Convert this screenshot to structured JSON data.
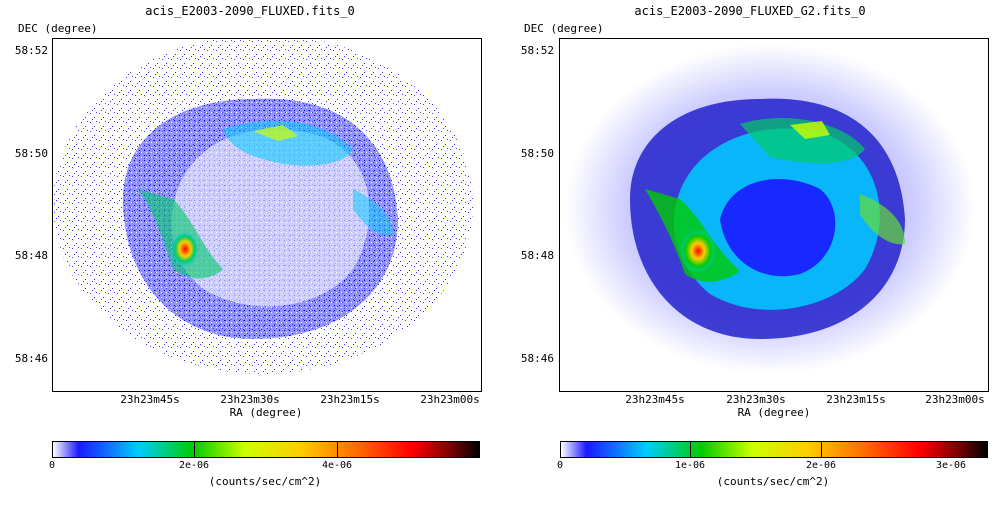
{
  "left": {
    "title": "acis_E2003-2090_FLUXED.fits_0",
    "yaxis_label": "DEC (degree)",
    "xaxis_label": "RA (degree)",
    "yticks": [
      "58:52",
      "58:50",
      "58:48",
      "58:46"
    ],
    "xticks": [
      "23h23m45s",
      "23h23m30s",
      "23h23m15s",
      "23h23m00s"
    ],
    "colorbar_ticks": [
      "0",
      "2e-06",
      "4e-06"
    ],
    "colorbar_units": "(counts/sec/cm^2)"
  },
  "right": {
    "title": "acis_E2003-2090_FLUXED_G2.fits_0",
    "yaxis_label": "DEC (degree)",
    "xaxis_label": "RA (degree)",
    "yticks": [
      "58:52",
      "58:50",
      "58:48",
      "58:46"
    ],
    "xticks": [
      "23h23m45s",
      "23h23m30s",
      "23h23m15s",
      "23h23m00s"
    ],
    "colorbar_ticks": [
      "0",
      "1e-06",
      "2e-06",
      "3e-06"
    ],
    "colorbar_units": "(counts/sec/cm^2)"
  },
  "colormap": [
    "#ffffff",
    "#1a1aff",
    "#00ccff",
    "#00cc00",
    "#ccff00",
    "#ffcc00",
    "#ff6600",
    "#ff0000",
    "#800000",
    "#000000"
  ]
}
